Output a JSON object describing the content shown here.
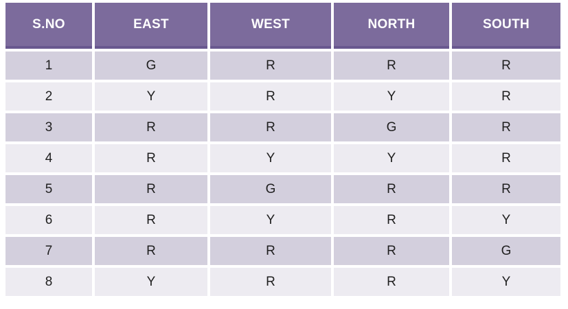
{
  "chart_data": {
    "type": "table",
    "title": "",
    "columns": [
      "S.NO",
      "EAST",
      "WEST",
      "NORTH",
      "SOUTH"
    ],
    "rows": [
      [
        "1",
        "G",
        "R",
        "R",
        "R"
      ],
      [
        "2",
        "Y",
        "R",
        "Y",
        "R"
      ],
      [
        "3",
        "R",
        "R",
        "G",
        "R"
      ],
      [
        "4",
        "R",
        "Y",
        "Y",
        "R"
      ],
      [
        "5",
        "R",
        "G",
        "R",
        "R"
      ],
      [
        "6",
        "R",
        "Y",
        "R",
        "Y"
      ],
      [
        "7",
        "R",
        "R",
        "R",
        "G"
      ],
      [
        "8",
        "Y",
        "R",
        "R",
        "Y"
      ]
    ]
  },
  "colors": {
    "header_bg": "#7C6B9C",
    "header_border": "#69588F",
    "band_dark": "#D3CFDD",
    "band_light": "#EDEBF1",
    "body_text": "#1F1F1F",
    "header_text": "#FFFFFF",
    "page_bg": "#FFFFFF"
  }
}
